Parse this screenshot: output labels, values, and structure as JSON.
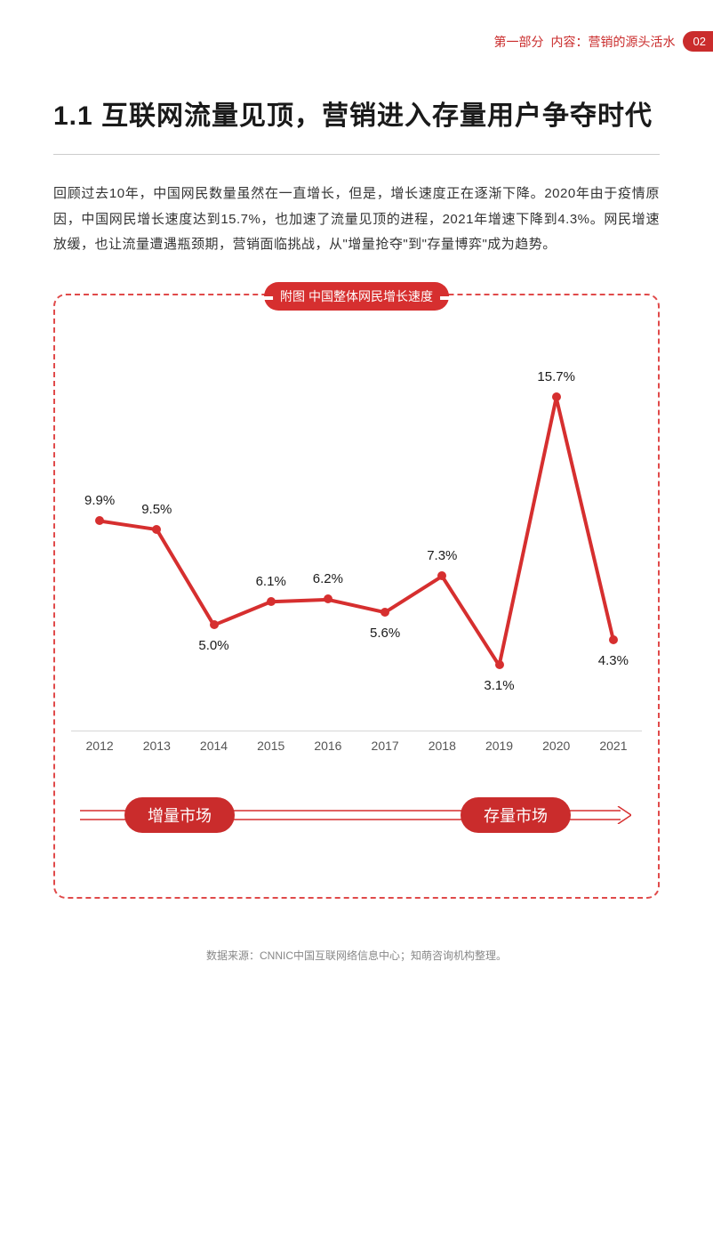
{
  "header": {
    "breadcrumb_part": "第一部分",
    "breadcrumb_section": "内容：营销的源头活水",
    "page_number": "02"
  },
  "section": {
    "number": "1.1",
    "title": "互联网流量见顶，营销进入存量用户争夺时代"
  },
  "body_paragraph": "回顾过去10年，中国网民数量虽然在一直增长，但是，增长速度正在逐渐下降。2020年由于疫情原因，中国网民增长速度达到15.7%，也加速了流量见顶的进程，2021年增速下降到4.3%。网民增速放缓，也让流量遭遇瓶颈期，营销面临挑战，从\"增量抢夺\"到\"存量博弈\"成为趋势。",
  "chart": {
    "title": "附图  中国整体网民增长速度",
    "type": "line",
    "years": [
      "2012",
      "2013",
      "2014",
      "2015",
      "2016",
      "2017",
      "2018",
      "2019",
      "2020",
      "2021"
    ],
    "values": [
      9.9,
      9.5,
      5.0,
      6.1,
      6.2,
      5.6,
      7.3,
      3.1,
      15.7,
      4.3
    ],
    "value_labels": [
      "9.9%",
      "9.5%",
      "5.0%",
      "6.1%",
      "6.2%",
      "5.6%",
      "7.3%",
      "3.1%",
      "15.7%",
      "4.3%"
    ],
    "label_positions": [
      "above",
      "above",
      "below",
      "above",
      "above",
      "below",
      "above",
      "below",
      "above",
      "below"
    ],
    "y_min": 0,
    "y_max": 18,
    "line_color": "#d62f2f",
    "line_width": 4,
    "point_color": "#d62f2f",
    "point_radius": 5,
    "background_color": "#ffffff",
    "baseline_color": "#d6d6d6",
    "label_fontsize": 15,
    "year_fontsize": 14,
    "year_color": "#555555"
  },
  "market_arrow": {
    "left_label": "增量市场",
    "right_label": "存量市场",
    "arrow_color": "#d62f2f",
    "pill_bg": "#ca2c2c",
    "pill_text_color": "#ffffff"
  },
  "footer": {
    "source": "数据来源：CNNIC中国互联网络信息中心；知萌咨询机构整理。"
  },
  "colors": {
    "primary_red": "#ca2c2c",
    "chart_border": "#e04a4a",
    "text_dark": "#1a1a1a",
    "text_body": "#333333",
    "text_muted": "#888888"
  }
}
